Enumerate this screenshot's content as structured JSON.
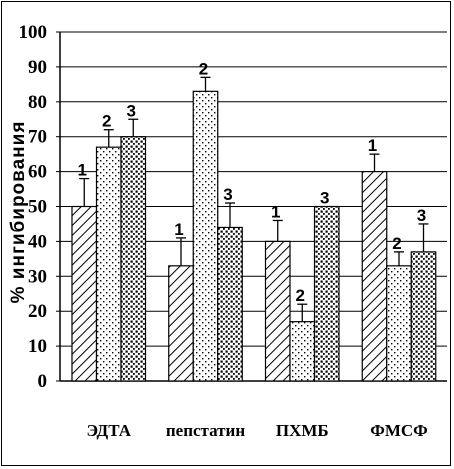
{
  "chart_data": {
    "type": "bar",
    "title": "",
    "xlabel": "",
    "ylabel": "% ингибирования",
    "ylim": [
      0,
      100
    ],
    "yticks": [
      0,
      10,
      20,
      30,
      40,
      50,
      60,
      70,
      80,
      90,
      100
    ],
    "grid": true,
    "legend": "none",
    "categories": [
      "ЭДТА",
      "пепстатин",
      "ПХМБ",
      "ФМСФ"
    ],
    "series": [
      {
        "label": "1",
        "pattern": "diagonal-hatch",
        "values": [
          50,
          33,
          40,
          60
        ],
        "errors": [
          8,
          8,
          6,
          5
        ]
      },
      {
        "label": "2",
        "pattern": "sparse-dots",
        "values": [
          67,
          83,
          17,
          33
        ],
        "errors": [
          5,
          4,
          5,
          4
        ]
      },
      {
        "label": "3",
        "pattern": "dense-dots",
        "values": [
          70,
          44,
          50,
          37
        ],
        "errors": [
          5,
          7,
          0,
          8
        ]
      }
    ]
  }
}
